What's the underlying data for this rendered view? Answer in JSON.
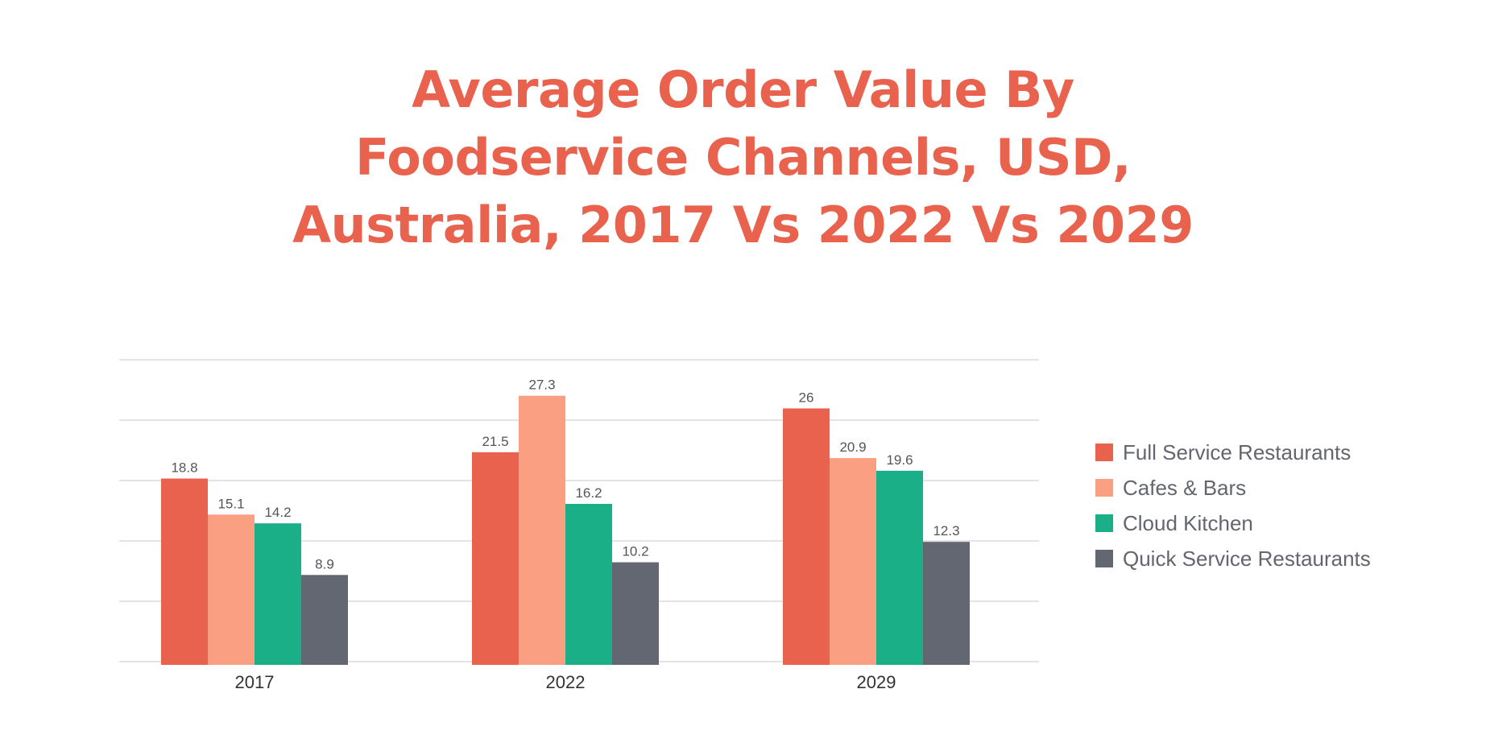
{
  "title_lines": [
    "Average Order Value By",
    "Foodservice Channels, USD,",
    "Australia, 2017 Vs 2022 Vs 2029"
  ],
  "colors": {
    "title": "#e8624e",
    "gridline": "#c8c8c8",
    "label_text": "#555555",
    "axis_text": "#333333",
    "legend_text": "#63656f"
  },
  "chart_data": {
    "type": "bar",
    "title": "Average Order Value By Foodservice Channels, USD, Australia, 2017 Vs 2022 Vs 2029",
    "categories": [
      "2017",
      "2022",
      "2029"
    ],
    "series": [
      {
        "name": "Full Service Restaurants",
        "color": "#e8624e",
        "values": [
          18.8,
          21.5,
          26
        ]
      },
      {
        "name": "Cafes & Bars",
        "color": "#fb9f83",
        "values": [
          15.1,
          27.3,
          20.9
        ]
      },
      {
        "name": "Cloud Kitchen",
        "color": "#1aaf87",
        "values": [
          14.2,
          16.2,
          19.6
        ]
      },
      {
        "name": "Quick Service Restaurants",
        "color": "#636772",
        "values": [
          8.9,
          10.2,
          12.3
        ]
      }
    ],
    "legend_position": "right",
    "grid": true,
    "xlabel": "",
    "ylabel": ""
  }
}
